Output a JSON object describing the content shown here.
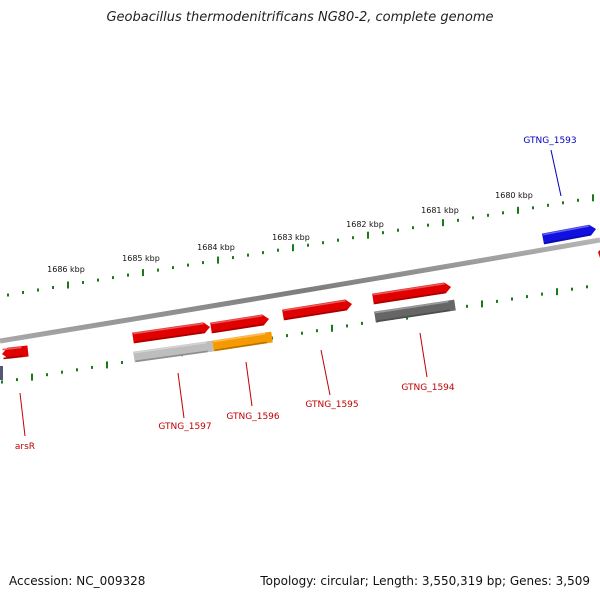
{
  "title": "Geobacillus thermodenitrificans NG80-2, complete genome",
  "footer": {
    "accession": "Accession: NC_009328",
    "summary": "Topology: circular; Length: 3,550,319 bp; Genes: 3,509"
  },
  "colors": {
    "tick": "#1a7a1a",
    "backbone": "#8a8a8a",
    "gene_red": "#e00000",
    "gene_blue": "#1010e0",
    "gene_gray": "#666666",
    "gene_light_gray": "#bdbdbd",
    "gene_orange": "#f59a00",
    "label_red": "#c00000",
    "label_blue": "#0000c0"
  },
  "scale_labels": [
    "1686 kbp",
    "1685 kbp",
    "1684 kbp",
    "1683 kbp",
    "1682 kbp",
    "1681 kbp",
    "1680 kbp"
  ],
  "genes": [
    {
      "name": "arsR",
      "color": "red"
    },
    {
      "name": "GTNG_1597",
      "color": "red"
    },
    {
      "name": "GTNG_1596",
      "color": "red"
    },
    {
      "name": "GTNG_1595",
      "color": "red"
    },
    {
      "name": "GTNG_1594",
      "color": "red"
    },
    {
      "name": "GTNG_1593",
      "color": "blue"
    }
  ]
}
